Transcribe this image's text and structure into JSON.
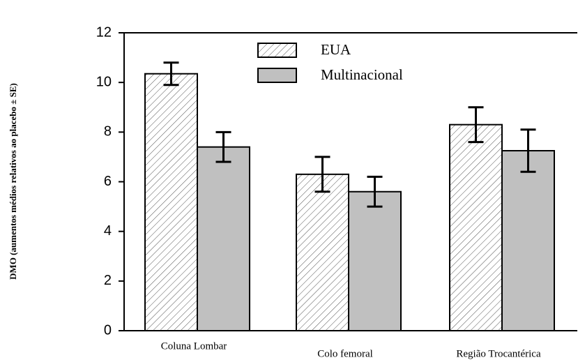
{
  "chart_data": {
    "type": "bar",
    "ylabel": "DMO (aumentos médios relativos ao placebo ± SE)",
    "categories": [
      "Coluna Lombar",
      "Colo femoral",
      "Região Trocantérica"
    ],
    "series": [
      {
        "name": "EUA",
        "color": "#ffffff",
        "hatch": true,
        "values": [
          10.35,
          6.3,
          8.3
        ],
        "errors": [
          0.45,
          0.7,
          0.7
        ]
      },
      {
        "name": "Multinacional",
        "color": "#c0c0c0",
        "hatch": false,
        "values": [
          7.4,
          5.6,
          7.25
        ],
        "errors": [
          0.6,
          0.6,
          0.85
        ]
      }
    ],
    "ylim": [
      0,
      12
    ],
    "yticks": [
      0,
      2,
      4,
      6,
      8,
      10,
      12
    ],
    "grid": false,
    "legend": "top"
  }
}
